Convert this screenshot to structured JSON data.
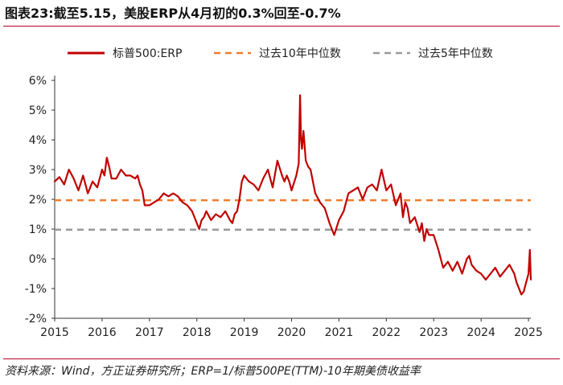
{
  "figure": {
    "title": "图表23:截至5.15，美股ERP从4月初的0.3%回至-0.7%",
    "source": "资料来源：Wind，方正证券研究所；ERP=1/标普500PE(TTM)-10年期美债收益率"
  },
  "chart_data": {
    "type": "line",
    "title": "图表23:截至5.15，美股ERP从4月初的0.3%回至-0.7%",
    "xlabel": "",
    "ylabel": "",
    "xlim": [
      2015,
      2025.05
    ],
    "ylim": [
      -2,
      6
    ],
    "x_ticks": [
      "2015",
      "2016",
      "2017",
      "2018",
      "2019",
      "2020",
      "2021",
      "2022",
      "2023",
      "2024",
      "2025"
    ],
    "y_ticks": [
      "-2%",
      "-1%",
      "0%",
      "1%",
      "2%",
      "3%",
      "4%",
      "5%",
      "6%"
    ],
    "grid": false,
    "legend_position": "top",
    "series": [
      {
        "name": "标普500:ERP",
        "color": "#c00000",
        "style": "solid",
        "x": [
          2015.0,
          2015.1,
          2015.2,
          2015.3,
          2015.4,
          2015.5,
          2015.6,
          2015.65,
          2015.7,
          2015.8,
          2015.9,
          2016.0,
          2016.05,
          2016.1,
          2016.15,
          2016.2,
          2016.3,
          2016.4,
          2016.5,
          2016.6,
          2016.7,
          2016.75,
          2016.8,
          2016.85,
          2016.9,
          2017.0,
          2017.1,
          2017.2,
          2017.3,
          2017.4,
          2017.5,
          2017.6,
          2017.7,
          2017.8,
          2017.9,
          2018.0,
          2018.05,
          2018.1,
          2018.15,
          2018.2,
          2018.3,
          2018.4,
          2018.5,
          2018.6,
          2018.7,
          2018.75,
          2018.8,
          2018.85,
          2018.9,
          2018.95,
          2019.0,
          2019.1,
          2019.2,
          2019.3,
          2019.4,
          2019.5,
          2019.6,
          2019.7,
          2019.8,
          2019.85,
          2019.9,
          2019.95,
          2020.0,
          2020.1,
          2020.15,
          2020.18,
          2020.2,
          2020.22,
          2020.25,
          2020.3,
          2020.35,
          2020.4,
          2020.5,
          2020.6,
          2020.7,
          2020.8,
          2020.9,
          2021.0,
          2021.1,
          2021.2,
          2021.3,
          2021.4,
          2021.5,
          2021.6,
          2021.7,
          2021.8,
          2021.9,
          2022.0,
          2022.1,
          2022.2,
          2022.3,
          2022.35,
          2022.4,
          2022.45,
          2022.5,
          2022.6,
          2022.7,
          2022.75,
          2022.8,
          2022.85,
          2022.9,
          2023.0,
          2023.1,
          2023.2,
          2023.3,
          2023.4,
          2023.5,
          2023.6,
          2023.7,
          2023.75,
          2023.8,
          2023.85,
          2023.9,
          2024.0,
          2024.1,
          2024.2,
          2024.3,
          2024.4,
          2024.5,
          2024.6,
          2024.7,
          2024.75,
          2024.8,
          2024.85,
          2024.9,
          2024.95,
          2025.0,
          2025.03,
          2025.05
        ],
        "y": [
          2.6,
          2.75,
          2.5,
          3.0,
          2.7,
          2.3,
          2.8,
          2.5,
          2.2,
          2.6,
          2.4,
          3.0,
          2.8,
          3.4,
          3.1,
          2.7,
          2.7,
          3.0,
          2.8,
          2.8,
          2.7,
          2.8,
          2.5,
          2.3,
          1.8,
          1.8,
          1.9,
          2.0,
          2.2,
          2.1,
          2.2,
          2.1,
          1.9,
          1.8,
          1.6,
          1.2,
          1.0,
          1.3,
          1.4,
          1.6,
          1.3,
          1.5,
          1.4,
          1.6,
          1.3,
          1.2,
          1.5,
          1.6,
          2.0,
          2.6,
          2.8,
          2.6,
          2.5,
          2.3,
          2.7,
          3.0,
          2.4,
          3.3,
          2.8,
          2.6,
          2.8,
          2.6,
          2.3,
          2.8,
          3.2,
          5.5,
          4.0,
          3.7,
          4.3,
          3.3,
          3.1,
          3.0,
          2.2,
          1.9,
          1.7,
          1.2,
          0.8,
          1.3,
          1.6,
          2.2,
          2.3,
          2.4,
          2.0,
          2.4,
          2.5,
          2.3,
          3.0,
          2.3,
          2.5,
          1.8,
          2.2,
          1.4,
          1.9,
          1.7,
          1.2,
          1.4,
          0.9,
          1.2,
          0.6,
          1.0,
          0.8,
          0.8,
          0.3,
          -0.3,
          -0.1,
          -0.4,
          -0.1,
          -0.5,
          0.0,
          0.1,
          -0.2,
          -0.3,
          -0.4,
          -0.5,
          -0.7,
          -0.5,
          -0.3,
          -0.6,
          -0.4,
          -0.2,
          -0.5,
          -0.8,
          -1.0,
          -1.2,
          -1.1,
          -0.8,
          -0.5,
          0.3,
          -0.7
        ]
      },
      {
        "name": "过去10年中位数",
        "color": "#f07c2b",
        "style": "dashed",
        "x": [
          2015.0,
          2025.05
        ],
        "y": [
          1.97,
          1.97
        ]
      },
      {
        "name": "过去5年中位数",
        "color": "#999999",
        "style": "dashed",
        "x": [
          2015.0,
          2025.05
        ],
        "y": [
          0.98,
          0.98
        ]
      }
    ]
  }
}
